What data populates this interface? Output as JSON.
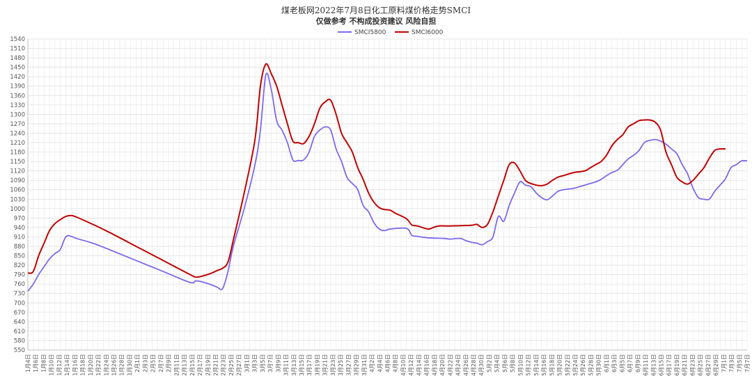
{
  "chart_data": {
    "type": "line",
    "title": "煤老板网2022年7月8日化工原料煤价格走势SMCI",
    "subtitle": "仅做参考 不构成投资建议 风险自担",
    "ylim": [
      550,
      1540
    ],
    "ytick_step": 30,
    "grid": true,
    "legend_position": "top-center",
    "x_labels": [
      "1月4日",
      "1月6日",
      "1月8日",
      "1月10日",
      "1月12日",
      "1月14日",
      "1月16日",
      "1月18日",
      "1月20日",
      "1月22日",
      "1月24日",
      "1月26日",
      "1月28日",
      "1月30日",
      "2月1日",
      "2月3日",
      "2月5日",
      "2月7日",
      "2月9日",
      "2月11日",
      "2月13日",
      "2月15日",
      "2月17日",
      "2月19日",
      "2月21日",
      "2月23日",
      "2月25日",
      "2月27日",
      "3月1日",
      "3月3日",
      "3月5日",
      "3月7日",
      "3月9日",
      "3月11日",
      "3月13日",
      "3月15日",
      "3月17日",
      "3月19日",
      "3月21日",
      "3月23日",
      "3月25日",
      "3月27日",
      "3月29日",
      "3月31日",
      "4月2日",
      "4月4日",
      "4月6日",
      "4月8日",
      "4月10日",
      "4月12日",
      "4月14日",
      "4月16日",
      "4月18日",
      "4月20日",
      "4月22日",
      "4月24日",
      "4月26日",
      "4月28日",
      "4月30日",
      "5月2日",
      "5月4日",
      "5月6日",
      "5月8日",
      "5月10日",
      "5月12日",
      "5月14日",
      "5月16日",
      "5月18日",
      "5月20日",
      "5月22日",
      "5月24日",
      "5月26日",
      "5月28日",
      "5月30日",
      "6月1日",
      "6月3日",
      "6月5日",
      "6月7日",
      "6月9日",
      "6月11日",
      "6月13日",
      "6月15日",
      "6月17日",
      "6月19日",
      "6月21日",
      "6月23日",
      "6月25日",
      "6月27日",
      "6月29日",
      "7月1日",
      "7月3日",
      "7月5日",
      "7月7日"
    ],
    "series": [
      {
        "name": "SMCI5800",
        "color": "#7b68ee",
        "points": [
          [
            0,
            737
          ],
          [
            1,
            760
          ],
          [
            2,
            790
          ],
          [
            3,
            815
          ],
          [
            4,
            840
          ],
          [
            5,
            857
          ],
          [
            6,
            870
          ],
          [
            7,
            910
          ],
          [
            8,
            912
          ],
          [
            9,
            905
          ],
          [
            12,
            890
          ],
          [
            15,
            870
          ],
          [
            20,
            835
          ],
          [
            25,
            800
          ],
          [
            30,
            765
          ],
          [
            31,
            770
          ],
          [
            32,
            768
          ],
          [
            34,
            757
          ],
          [
            35,
            750
          ],
          [
            36,
            745
          ],
          [
            37,
            800
          ],
          [
            38,
            880
          ],
          [
            40,
            1000
          ],
          [
            42,
            1140
          ],
          [
            43,
            1250
          ],
          [
            44,
            1425
          ],
          [
            45,
            1380
          ],
          [
            46,
            1280
          ],
          [
            47,
            1250
          ],
          [
            48,
            1210
          ],
          [
            49,
            1155
          ],
          [
            50,
            1153
          ],
          [
            51,
            1155
          ],
          [
            52,
            1180
          ],
          [
            53,
            1230
          ],
          [
            54,
            1250
          ],
          [
            55,
            1260
          ],
          [
            56,
            1250
          ],
          [
            57,
            1190
          ],
          [
            58,
            1150
          ],
          [
            59,
            1100
          ],
          [
            60,
            1080
          ],
          [
            61,
            1060
          ],
          [
            62,
            1010
          ],
          [
            63,
            990
          ],
          [
            64,
            955
          ],
          [
            65,
            935
          ],
          [
            66,
            930
          ],
          [
            67,
            935
          ],
          [
            70,
            937
          ],
          [
            71,
            915
          ],
          [
            72,
            912
          ],
          [
            74,
            907
          ],
          [
            77,
            905
          ],
          [
            78,
            903
          ],
          [
            80,
            905
          ],
          [
            81,
            898
          ],
          [
            82,
            893
          ],
          [
            83,
            890
          ],
          [
            84,
            885
          ],
          [
            85,
            895
          ],
          [
            86,
            910
          ],
          [
            87,
            975
          ],
          [
            88,
            960
          ],
          [
            89,
            1010
          ],
          [
            90,
            1050
          ],
          [
            91,
            1085
          ],
          [
            92,
            1075
          ],
          [
            93,
            1070
          ],
          [
            94,
            1050
          ],
          [
            95,
            1035
          ],
          [
            96,
            1028
          ],
          [
            97,
            1040
          ],
          [
            98,
            1055
          ],
          [
            99,
            1060
          ],
          [
            101,
            1065
          ],
          [
            102,
            1070
          ],
          [
            103,
            1075
          ],
          [
            104,
            1080
          ],
          [
            105,
            1085
          ],
          [
            106,
            1093
          ],
          [
            107,
            1105
          ],
          [
            108,
            1115
          ],
          [
            109,
            1122
          ],
          [
            110,
            1140
          ],
          [
            111,
            1158
          ],
          [
            112,
            1170
          ],
          [
            113,
            1185
          ],
          [
            114,
            1210
          ],
          [
            115,
            1217
          ],
          [
            116,
            1220
          ],
          [
            117,
            1215
          ],
          [
            118,
            1205
          ],
          [
            119,
            1190
          ],
          [
            120,
            1175
          ],
          [
            121,
            1140
          ],
          [
            122,
            1110
          ],
          [
            123,
            1065
          ],
          [
            124,
            1035
          ],
          [
            125,
            1030
          ],
          [
            126,
            1030
          ],
          [
            127,
            1055
          ],
          [
            128,
            1075
          ],
          [
            129,
            1095
          ],
          [
            130,
            1130
          ],
          [
            131,
            1140
          ],
          [
            132,
            1152
          ],
          [
            133,
            1152
          ]
        ]
      },
      {
        "name": "SMCI6000",
        "color": "#c00000",
        "points": [
          [
            0,
            795
          ],
          [
            1,
            800
          ],
          [
            2,
            850
          ],
          [
            3,
            890
          ],
          [
            4,
            930
          ],
          [
            5,
            952
          ],
          [
            6,
            965
          ],
          [
            7,
            975
          ],
          [
            8,
            978
          ],
          [
            9,
            973
          ],
          [
            12,
            950
          ],
          [
            15,
            925
          ],
          [
            20,
            880
          ],
          [
            25,
            835
          ],
          [
            30,
            790
          ],
          [
            31,
            782
          ],
          [
            32,
            784
          ],
          [
            34,
            795
          ],
          [
            35,
            803
          ],
          [
            36,
            810
          ],
          [
            37,
            830
          ],
          [
            38,
            900
          ],
          [
            40,
            1050
          ],
          [
            42,
            1220
          ],
          [
            43,
            1390
          ],
          [
            44,
            1460
          ],
          [
            45,
            1430
          ],
          [
            46,
            1390
          ],
          [
            47,
            1330
          ],
          [
            48,
            1270
          ],
          [
            49,
            1215
          ],
          [
            50,
            1210
          ],
          [
            51,
            1207
          ],
          [
            52,
            1230
          ],
          [
            53,
            1270
          ],
          [
            54,
            1320
          ],
          [
            55,
            1340
          ],
          [
            56,
            1345
          ],
          [
            57,
            1300
          ],
          [
            58,
            1240
          ],
          [
            59,
            1210
          ],
          [
            60,
            1180
          ],
          [
            61,
            1130
          ],
          [
            62,
            1093
          ],
          [
            63,
            1050
          ],
          [
            64,
            1020
          ],
          [
            65,
            1003
          ],
          [
            66,
            997
          ],
          [
            67,
            995
          ],
          [
            68,
            985
          ],
          [
            70,
            968
          ],
          [
            71,
            948
          ],
          [
            72,
            945
          ],
          [
            74,
            935
          ],
          [
            75,
            940
          ],
          [
            76,
            945
          ],
          [
            78,
            945
          ],
          [
            82,
            947
          ],
          [
            83,
            950
          ],
          [
            84,
            940
          ],
          [
            85,
            950
          ],
          [
            86,
            990
          ],
          [
            87,
            1040
          ],
          [
            88,
            1090
          ],
          [
            89,
            1140
          ],
          [
            90,
            1145
          ],
          [
            91,
            1120
          ],
          [
            92,
            1090
          ],
          [
            93,
            1080
          ],
          [
            94,
            1075
          ],
          [
            95,
            1073
          ],
          [
            96,
            1078
          ],
          [
            97,
            1090
          ],
          [
            98,
            1100
          ],
          [
            99,
            1105
          ],
          [
            101,
            1115
          ],
          [
            103,
            1120
          ],
          [
            104,
            1130
          ],
          [
            105,
            1140
          ],
          [
            106,
            1150
          ],
          [
            107,
            1170
          ],
          [
            108,
            1200
          ],
          [
            109,
            1220
          ],
          [
            110,
            1235
          ],
          [
            111,
            1260
          ],
          [
            112,
            1270
          ],
          [
            113,
            1280
          ],
          [
            114,
            1282
          ],
          [
            115,
            1282
          ],
          [
            116,
            1275
          ],
          [
            117,
            1250
          ],
          [
            118,
            1180
          ],
          [
            119,
            1140
          ],
          [
            120,
            1100
          ],
          [
            121,
            1085
          ],
          [
            122,
            1078
          ],
          [
            123,
            1090
          ],
          [
            124,
            1110
          ],
          [
            125,
            1130
          ],
          [
            126,
            1160
          ],
          [
            127,
            1185
          ],
          [
            128,
            1190
          ],
          [
            129,
            1190
          ]
        ]
      }
    ]
  }
}
